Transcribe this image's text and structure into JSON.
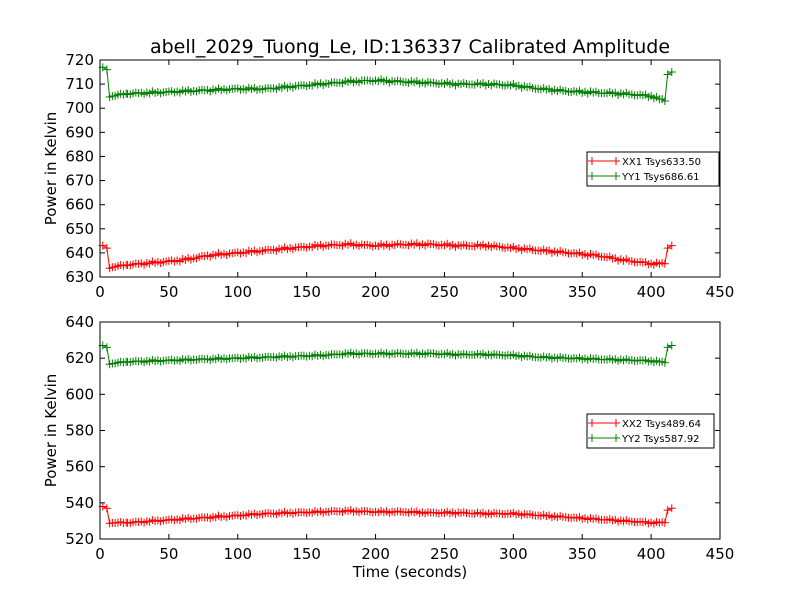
{
  "title": "abell_2029_Tuong_Le, ID:136337 Calibrated Amplitude",
  "colors": {
    "xx": "#ff0000",
    "yy": "#008000"
  },
  "chart_data": [
    {
      "type": "line",
      "title": "abell_2029_Tuong_Le, ID:136337 Calibrated Amplitude",
      "xlabel": "",
      "ylabel": "Power in Kelvin",
      "xlim": [
        0,
        450
      ],
      "ylim": [
        630,
        720
      ],
      "xticks": [
        0,
        50,
        100,
        150,
        200,
        250,
        300,
        350,
        400,
        450
      ],
      "yticks": [
        630,
        640,
        650,
        660,
        670,
        680,
        690,
        700,
        710,
        720
      ],
      "legend_position": "right",
      "series": [
        {
          "name": "XX1 Tsys633.50",
          "color": "#ff0000",
          "x": [
            2,
            5,
            7,
            20,
            40,
            60,
            80,
            100,
            120,
            140,
            160,
            180,
            200,
            220,
            240,
            260,
            280,
            300,
            320,
            340,
            360,
            380,
            400,
            410,
            412,
            415
          ],
          "y": [
            643,
            642,
            634,
            635,
            636,
            637,
            639,
            640,
            641,
            642,
            643,
            643.5,
            643,
            643.5,
            643.5,
            643,
            643,
            642,
            641,
            640,
            639,
            637,
            635.5,
            635.5,
            642,
            643
          ]
        },
        {
          "name": "YY1 Tsys686.61",
          "color": "#008000",
          "x": [
            2,
            5,
            7,
            20,
            40,
            60,
            80,
            100,
            120,
            140,
            160,
            180,
            200,
            220,
            240,
            260,
            280,
            300,
            320,
            340,
            360,
            380,
            400,
            410,
            412,
            415
          ],
          "y": [
            717,
            716,
            705,
            706,
            706.5,
            707,
            707.5,
            708,
            708,
            709,
            710,
            711,
            711.5,
            711,
            710.5,
            710,
            710,
            709.5,
            708,
            707,
            706.5,
            706,
            705,
            703,
            714,
            715
          ]
        }
      ]
    },
    {
      "type": "line",
      "title": "",
      "xlabel": "Time (seconds)",
      "ylabel": "Power in Kelvin",
      "xlim": [
        0,
        450
      ],
      "ylim": [
        520,
        640
      ],
      "xticks": [
        0,
        50,
        100,
        150,
        200,
        250,
        300,
        350,
        400,
        450
      ],
      "yticks": [
        520,
        540,
        560,
        580,
        600,
        620,
        640
      ],
      "legend_position": "right",
      "series": [
        {
          "name": "XX2 Tsys489.64",
          "color": "#ff0000",
          "x": [
            2,
            5,
            7,
            20,
            40,
            60,
            80,
            100,
            120,
            140,
            160,
            180,
            200,
            220,
            240,
            260,
            280,
            300,
            320,
            340,
            360,
            380,
            400,
            410,
            412,
            415
          ],
          "y": [
            538,
            537,
            529,
            529,
            530,
            531,
            532,
            533,
            534,
            534.5,
            535,
            535.5,
            535,
            535,
            534.5,
            534.5,
            534,
            534,
            533,
            532,
            531,
            530,
            529,
            529,
            536,
            537
          ]
        },
        {
          "name": "YY2 Tsys587.92",
          "color": "#008000",
          "x": [
            2,
            5,
            7,
            20,
            40,
            60,
            80,
            100,
            120,
            140,
            160,
            180,
            200,
            220,
            240,
            260,
            280,
            300,
            320,
            340,
            360,
            380,
            400,
            410,
            412,
            415
          ],
          "y": [
            627,
            626,
            617,
            618,
            618.5,
            619,
            619.5,
            620,
            620.5,
            621,
            621.5,
            622.5,
            622.5,
            622.5,
            622.5,
            622,
            622,
            621.5,
            620.5,
            620,
            619.5,
            619,
            618.5,
            617.5,
            626,
            627
          ]
        }
      ]
    }
  ]
}
